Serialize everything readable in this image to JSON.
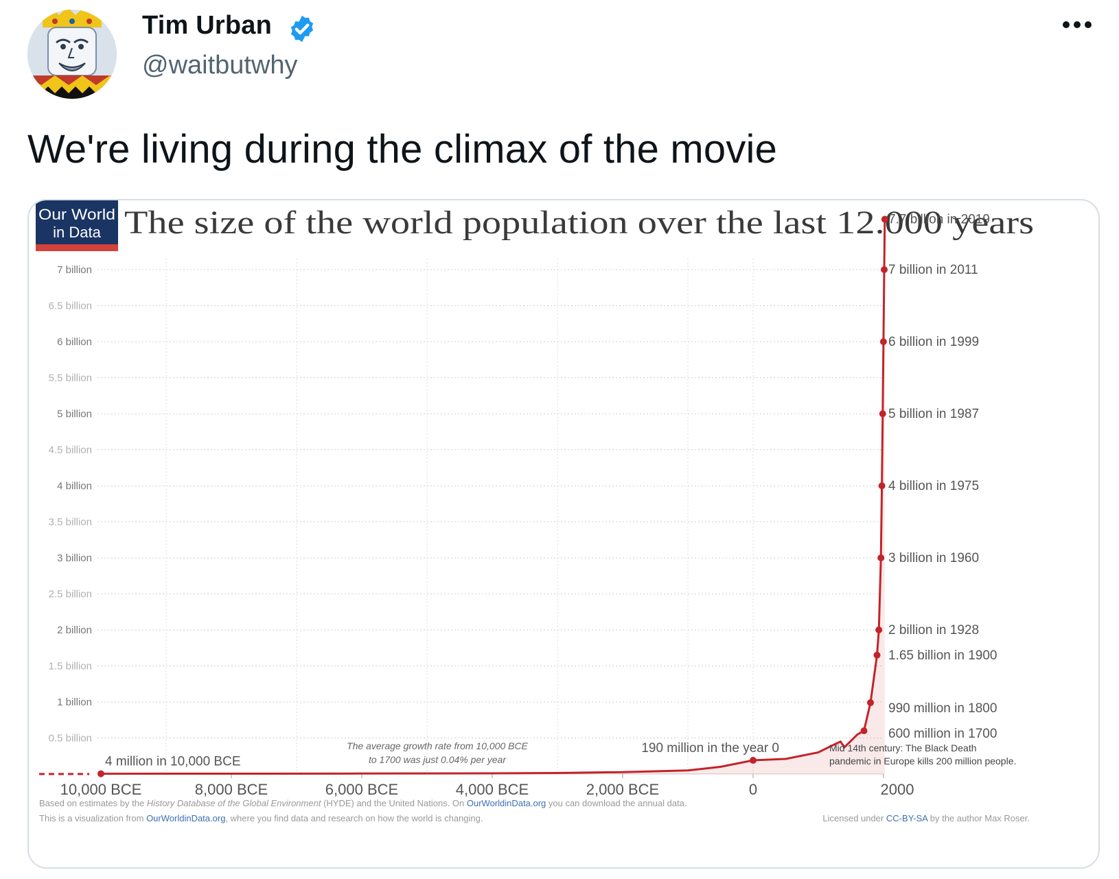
{
  "author": {
    "name": "Tim Urban",
    "handle": "@waitbutwhy",
    "verified": true,
    "verified_color": "#1d9bf0",
    "avatar_icon": "king-playing-card-avatar"
  },
  "more_icon": "more-dots-icon",
  "tweet": {
    "text": "We're living during the climax of the movie"
  },
  "media": {
    "logo": {
      "line1": "Our World",
      "line2": "in Data",
      "bg": "#1a3463",
      "accent": "#d3413a"
    },
    "chart_data": {
      "type": "line",
      "title": "The size of the world population over the last 12.000 years",
      "x_range": [
        -10300,
        2019
      ],
      "ylim": [
        0,
        7.7
      ],
      "grid": true,
      "line_color": "#c3232a",
      "y_ticks": [
        {
          "value": 0.5,
          "label": "0.5 billion"
        },
        {
          "value": 1,
          "label": "1 billion"
        },
        {
          "value": 1.5,
          "label": "1.5 billion"
        },
        {
          "value": 2,
          "label": "2 billion"
        },
        {
          "value": 2.5,
          "label": "2.5 billion"
        },
        {
          "value": 3,
          "label": "3 billion"
        },
        {
          "value": 3.5,
          "label": "3.5 billion"
        },
        {
          "value": 4,
          "label": "4 billion"
        },
        {
          "value": 4.5,
          "label": "4.5 billion"
        },
        {
          "value": 5,
          "label": "5 billion"
        },
        {
          "value": 5.5,
          "label": "5.5 billion"
        },
        {
          "value": 6,
          "label": "6 billion"
        },
        {
          "value": 6.5,
          "label": "6.5 billion"
        },
        {
          "value": 7,
          "label": "7 billion"
        }
      ],
      "x_ticks": [
        {
          "value": -10000,
          "label": "10,000 BCE"
        },
        {
          "value": -8000,
          "label": "8,000 BCE"
        },
        {
          "value": -6000,
          "label": "6,000 BCE"
        },
        {
          "value": -4000,
          "label": "4,000 BCE"
        },
        {
          "value": -2000,
          "label": "2,000 BCE"
        },
        {
          "value": 0,
          "label": "0"
        },
        {
          "value": 2000,
          "label": "2000"
        }
      ],
      "series": [
        {
          "values": [
            {
              "x": -10000,
              "y": 0.004
            },
            {
              "x": -8000,
              "y": 0.005
            },
            {
              "x": -6000,
              "y": 0.007
            },
            {
              "x": -4000,
              "y": 0.01
            },
            {
              "x": -3000,
              "y": 0.014
            },
            {
              "x": -2000,
              "y": 0.027
            },
            {
              "x": -1000,
              "y": 0.05
            },
            {
              "x": -500,
              "y": 0.1
            },
            {
              "x": 0,
              "y": 0.19
            },
            {
              "x": 500,
              "y": 0.21
            },
            {
              "x": 1000,
              "y": 0.3
            },
            {
              "x": 1200,
              "y": 0.39
            },
            {
              "x": 1340,
              "y": 0.45
            },
            {
              "x": 1400,
              "y": 0.37
            },
            {
              "x": 1500,
              "y": 0.46
            },
            {
              "x": 1600,
              "y": 0.55
            },
            {
              "x": 1700,
              "y": 0.6
            },
            {
              "x": 1800,
              "y": 0.99
            },
            {
              "x": 1900,
              "y": 1.65
            },
            {
              "x": 1928,
              "y": 2.0
            },
            {
              "x": 1960,
              "y": 3.0
            },
            {
              "x": 1975,
              "y": 4.0
            },
            {
              "x": 1987,
              "y": 5.0
            },
            {
              "x": 1999,
              "y": 6.0
            },
            {
              "x": 2011,
              "y": 7.0
            },
            {
              "x": 2019,
              "y": 7.7
            }
          ]
        }
      ],
      "markers": [
        {
          "x": -10000,
          "y": 0.004,
          "label": "4 million in 10,000 BCE",
          "anchor": "above-right"
        },
        {
          "x": 0,
          "y": 0.19,
          "label": "190 million in the year 0",
          "anchor": "above-left"
        },
        {
          "x": 1700,
          "y": 0.6,
          "label": "600 million in 1700",
          "anchor": "right"
        },
        {
          "x": 1800,
          "y": 0.99,
          "label": "990 million in 1800",
          "anchor": "right"
        },
        {
          "x": 1900,
          "y": 1.65,
          "label": "1.65 billion in 1900",
          "anchor": "right"
        },
        {
          "x": 1928,
          "y": 2.0,
          "label": "2 billion in 1928",
          "anchor": "right"
        },
        {
          "x": 1960,
          "y": 3.0,
          "label": "3 billion in 1960",
          "anchor": "right"
        },
        {
          "x": 1975,
          "y": 4.0,
          "label": "4 billion in 1975",
          "anchor": "right"
        },
        {
          "x": 1987,
          "y": 5.0,
          "label": "5 billion in 1987",
          "anchor": "right"
        },
        {
          "x": 1999,
          "y": 6.0,
          "label": "6 billion in 1999",
          "anchor": "right"
        },
        {
          "x": 2011,
          "y": 7.0,
          "label": "7 billion in 2011",
          "anchor": "right"
        },
        {
          "x": 2019,
          "y": 7.7,
          "label": "7.7 billion in 2019",
          "anchor": "right"
        }
      ],
      "annotations": {
        "growth_line1": "The average growth rate from 10,000 BCE",
        "growth_line2": "to 1700 was just 0.04% per year",
        "plague_line1": "Mid 14th century: The Black Death",
        "plague_line2": "pandemic in Europe kills 200 million people."
      },
      "source": {
        "line1_a": "Based on estimates by the ",
        "line1_b": "History Database of the Global Environment",
        "line1_c": " (HYDE) and the United Nations. On ",
        "line1_d": "OurWorldinData.org",
        "line1_e": " you can download the annual data.",
        "line2_a": "This is a visualization from ",
        "line2_b": "OurWorldinData.org",
        "line2_c": ", where you find data and research on how the world is changing.",
        "license_a": "Licensed under ",
        "license_b": "CC-BY-SA",
        "license_c": " by the author Max Roser."
      }
    }
  }
}
